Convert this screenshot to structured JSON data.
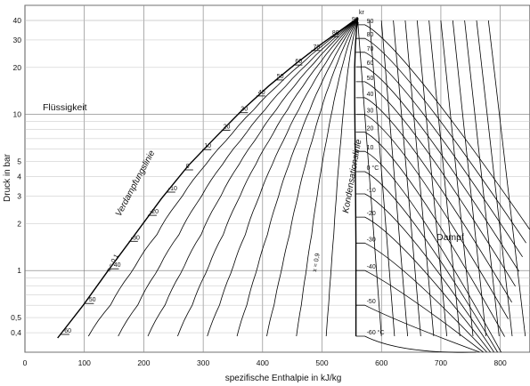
{
  "chart_data": {
    "type": "line",
    "xlabel": "spezifische Enthalpie in kJ/kg",
    "ylabel": "Druck in bar",
    "xlim": [
      0,
      850
    ],
    "ylim": [
      0.3,
      50
    ],
    "y_scale": "log",
    "x_ticks": [
      "0",
      "100",
      "200",
      "300",
      "400",
      "500",
      "600",
      "700",
      "800"
    ],
    "y_ticks": [
      {
        "v": 0.4,
        "label": "0,4"
      },
      {
        "v": 0.5,
        "label": "0,5"
      },
      {
        "v": 1,
        "label": "1"
      },
      {
        "v": 2,
        "label": "2"
      },
      {
        "v": 3,
        "label": "3"
      },
      {
        "v": 4,
        "label": "4"
      },
      {
        "v": 5,
        "label": "5"
      },
      {
        "v": 10,
        "label": "10"
      },
      {
        "v": 20,
        "label": "20"
      },
      {
        "v": 30,
        "label": "30"
      },
      {
        "v": 40,
        "label": "40"
      }
    ],
    "region_labels": {
      "liquid": "Flüssigkeit",
      "vapor": "Dampf",
      "critical_point": "kr",
      "bubble_line": "Verdampfungslinie",
      "dew_line": "Kondensationslinie",
      "quality_low": "x = 0,1",
      "quality_high": "x = 0,9"
    },
    "saturated_liquid_line": {
      "h": [
        55,
        98,
        140,
        185,
        230,
        275,
        320,
        365,
        410,
        455,
        500,
        540,
        560
      ],
      "p": [
        0.37,
        0.6,
        1.0,
        1.7,
        2.9,
        4.7,
        7.1,
        10.6,
        15.2,
        21.0,
        28.5,
        36.5,
        41.5
      ]
    },
    "saturated_vapor_line": {
      "h": [
        560,
        558,
        556,
        555,
        555,
        556,
        557,
        557
      ],
      "p": [
        41.5,
        35,
        27,
        20,
        12,
        5,
        1.5,
        0.38
      ]
    },
    "isotherm_labels_liquid": [
      "-60",
      "-50",
      "-40",
      "-30",
      "-20",
      "-10",
      "0",
      "10",
      "20",
      "30",
      "40",
      "50",
      "60",
      "70",
      "80",
      "90"
    ],
    "isotherm_labels_vapor": [
      "-60 °C",
      "-50",
      "-40",
      "-30",
      "-20",
      "-10",
      "0 °C",
      "10",
      "20",
      "30",
      "40",
      "50",
      "60",
      "70",
      "80",
      "90"
    ]
  }
}
